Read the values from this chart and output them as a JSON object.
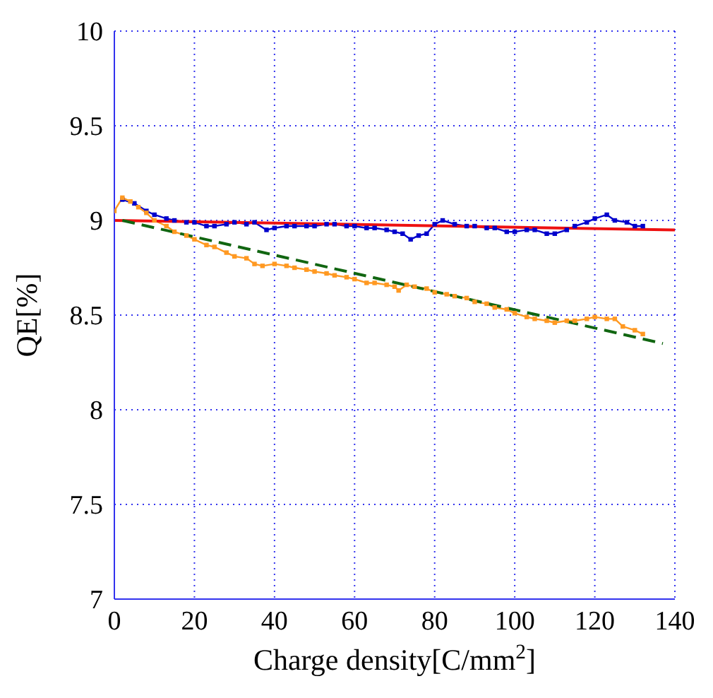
{
  "chart_data": {
    "type": "line",
    "xlabel": "Charge density[C/mm$^{2}$]",
    "ylabel": "QE[%]",
    "xlim": [
      0,
      140
    ],
    "xticks": [
      0,
      20,
      40,
      60,
      80,
      100,
      120,
      140
    ],
    "ylim": [
      7,
      10
    ],
    "yticks": [
      7,
      7.5,
      8,
      8.5,
      9,
      9.5,
      10
    ],
    "grid": true,
    "series": [
      {
        "color": "#0000cc",
        "marker": "square",
        "line_style": "solid",
        "x": [
          2,
          5,
          8,
          10,
          13,
          15,
          18,
          20,
          23,
          25,
          28,
          30,
          33,
          35,
          38,
          40,
          43,
          45,
          48,
          50,
          53,
          55,
          58,
          60,
          63,
          65,
          68,
          70,
          72,
          74,
          76,
          78,
          80,
          82,
          85,
          88,
          90,
          93,
          95,
          98,
          100,
          103,
          105,
          108,
          110,
          113,
          115,
          118,
          120,
          123,
          125,
          128,
          130,
          132
        ],
        "values": [
          9.11,
          9.09,
          9.05,
          9.03,
          9.01,
          9.0,
          8.99,
          8.99,
          8.97,
          8.97,
          8.98,
          8.99,
          8.98,
          8.99,
          8.95,
          8.96,
          8.97,
          8.97,
          8.97,
          8.97,
          8.98,
          8.98,
          8.97,
          8.97,
          8.96,
          8.96,
          8.95,
          8.94,
          8.93,
          8.9,
          8.92,
          8.93,
          8.98,
          9.0,
          8.98,
          8.97,
          8.97,
          8.96,
          8.96,
          8.94,
          8.94,
          8.95,
          8.95,
          8.93,
          8.93,
          8.95,
          8.97,
          8.99,
          9.01,
          9.03,
          9.0,
          8.99,
          8.97,
          8.97
        ]
      },
      {
        "color": "#ff9922",
        "marker": "square",
        "line_style": "solid",
        "x": [
          0,
          2,
          4,
          6,
          8,
          10,
          13,
          15,
          18,
          20,
          23,
          25,
          28,
          30,
          33,
          35,
          37,
          40,
          43,
          45,
          48,
          50,
          53,
          55,
          58,
          60,
          63,
          65,
          68,
          70,
          71,
          73,
          75,
          78,
          80,
          83,
          85,
          88,
          90,
          93,
          95,
          98,
          100,
          103,
          105,
          108,
          110,
          113,
          115,
          118,
          120,
          123,
          125,
          127,
          130,
          132
        ],
        "values": [
          9.05,
          9.12,
          9.1,
          9.07,
          9.04,
          9.0,
          8.97,
          8.94,
          8.92,
          8.9,
          8.87,
          8.86,
          8.83,
          8.81,
          8.8,
          8.77,
          8.76,
          8.77,
          8.76,
          8.75,
          8.74,
          8.73,
          8.72,
          8.71,
          8.7,
          8.69,
          8.67,
          8.67,
          8.66,
          8.65,
          8.63,
          8.66,
          8.65,
          8.64,
          8.62,
          8.61,
          8.6,
          8.59,
          8.57,
          8.56,
          8.54,
          8.53,
          8.51,
          8.49,
          8.48,
          8.47,
          8.46,
          8.47,
          8.47,
          8.48,
          8.49,
          8.48,
          8.48,
          8.44,
          8.42,
          8.4
        ]
      },
      {
        "color": "#ee1111",
        "marker": "none",
        "line_style": "solid",
        "x": [
          0,
          140
        ],
        "values": [
          9.0,
          8.95
        ]
      },
      {
        "color": "#116611",
        "marker": "none",
        "line_style": "dashed",
        "x": [
          2,
          137
        ],
        "values": [
          9.0,
          8.35
        ]
      }
    ]
  }
}
